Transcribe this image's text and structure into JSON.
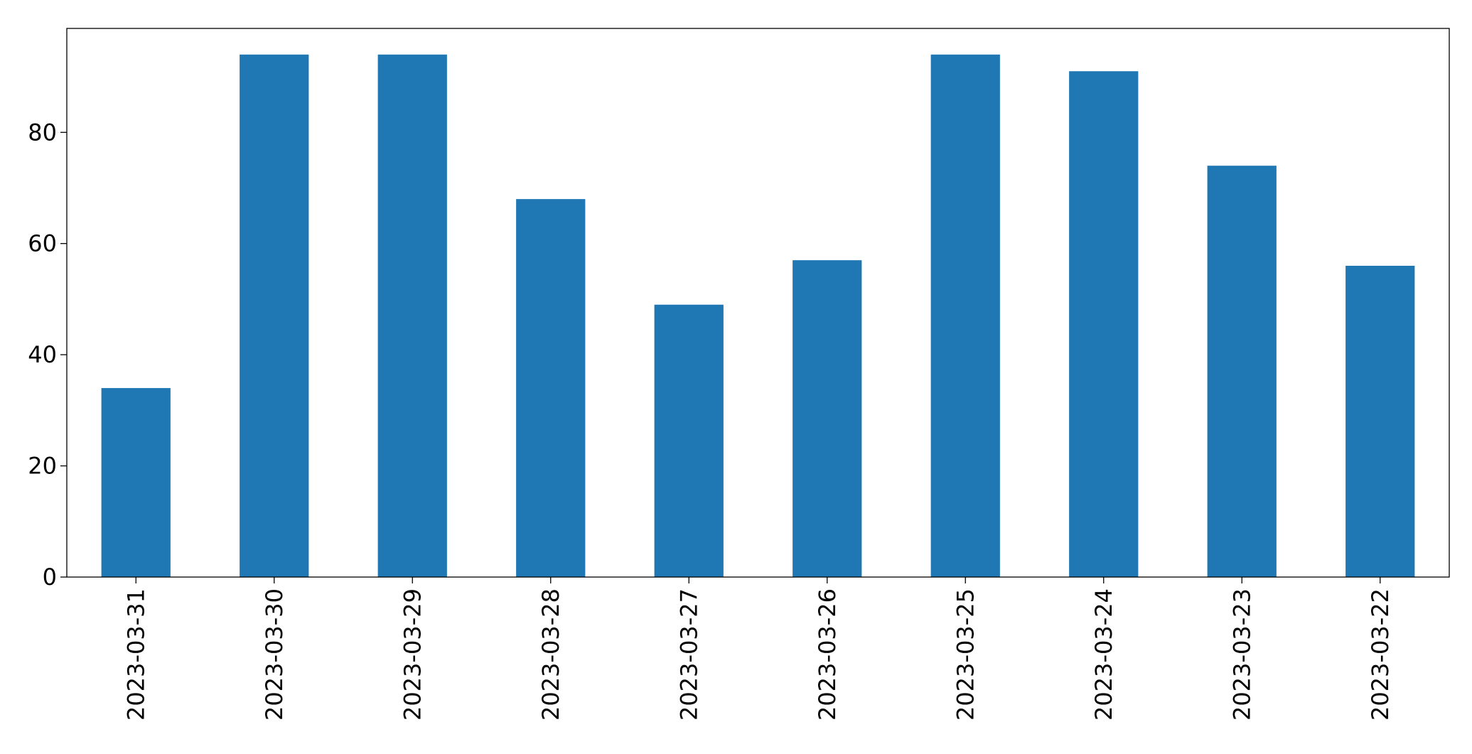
{
  "chart_data": {
    "type": "bar",
    "title": "",
    "xlabel": "",
    "ylabel": "",
    "categories": [
      "2023-03-31",
      "2023-03-30",
      "2023-03-29",
      "2023-03-28",
      "2023-03-27",
      "2023-03-26",
      "2023-03-25",
      "2023-03-24",
      "2023-03-23",
      "2023-03-22"
    ],
    "values": [
      34,
      94,
      94,
      68,
      49,
      57,
      94,
      91,
      74,
      56
    ],
    "ylim": [
      0,
      98.7
    ],
    "yticks": [
      0,
      20,
      40,
      60,
      80
    ],
    "ytick_labels": [
      "0",
      "20",
      "40",
      "60",
      "80"
    ],
    "grid": false,
    "legend": "none",
    "bar_color": "#1f77b4"
  }
}
